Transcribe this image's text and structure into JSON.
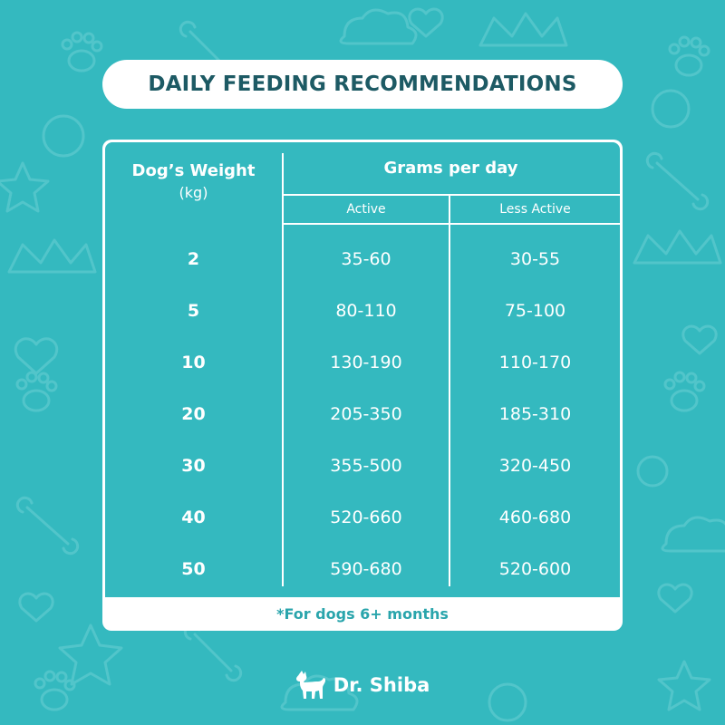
{
  "title": "DAILY FEEDING RECOMMENDATIONS",
  "table": {
    "weight_header": "Dog’s Weight",
    "weight_unit": "(kg)",
    "grams_header": "Grams per day",
    "col_active": "Active",
    "col_less_active": "Less Active",
    "rows": [
      {
        "weight": "2",
        "active": "35-60",
        "less_active": "30-55"
      },
      {
        "weight": "5",
        "active": "80-110",
        "less_active": "75-100"
      },
      {
        "weight": "10",
        "active": "130-190",
        "less_active": "110-170"
      },
      {
        "weight": "20",
        "active": "205-350",
        "less_active": "185-310"
      },
      {
        "weight": "30",
        "active": "355-500",
        "less_active": "320-450"
      },
      {
        "weight": "40",
        "active": "520-660",
        "less_active": "460-680"
      },
      {
        "weight": "50",
        "active": "590-680",
        "less_active": "520-600"
      }
    ],
    "footnote": "*For dogs 6+ months"
  },
  "brand": {
    "name": "Dr. Shiba",
    "logo_icon": "dog-silhouette-icon"
  },
  "colors": {
    "background": "#34b9bf",
    "title_text": "#1d5a64",
    "footnote_text": "#2aa5ac",
    "panel": "#ffffff"
  }
}
